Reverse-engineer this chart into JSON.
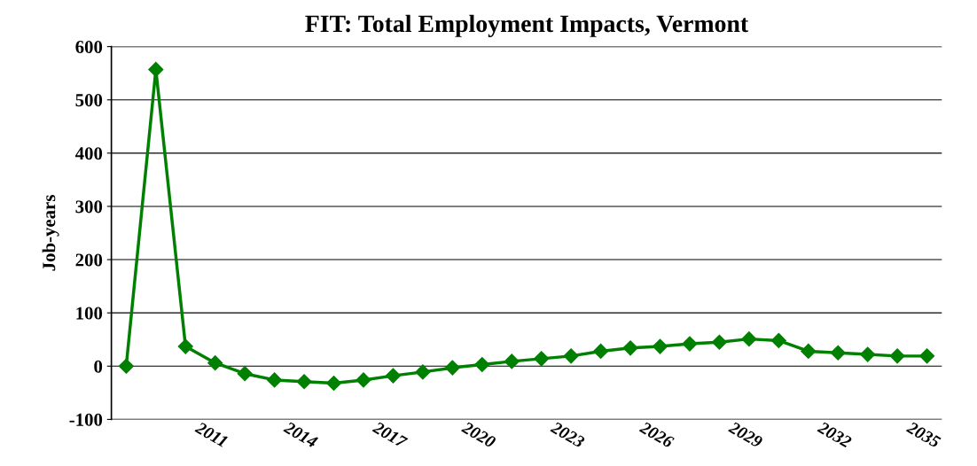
{
  "chart_data": {
    "type": "line",
    "title": "FIT: Total Employment Impacts, Vermont",
    "ylabel": "Job-years",
    "categories": [
      null,
      null,
      null,
      "2011",
      null,
      null,
      "2014",
      null,
      null,
      "2017",
      null,
      null,
      "2020",
      null,
      null,
      "2023",
      null,
      null,
      "2026",
      null,
      null,
      "2029",
      null,
      null,
      "2032",
      null,
      null,
      "2035"
    ],
    "series": [
      {
        "color": "#008000",
        "values": [
          0,
          557,
          37,
          6,
          -14,
          -26,
          -29,
          -32,
          -26,
          -18,
          -11,
          -3,
          3,
          9,
          14,
          19,
          28,
          34,
          37,
          42,
          45,
          51,
          48,
          28,
          25,
          22,
          19,
          19
        ]
      }
    ],
    "ylim": [
      -100,
      600
    ],
    "yticks": [
      -100,
      0,
      100,
      200,
      300,
      400,
      500,
      600
    ],
    "grid": "y",
    "legend": false,
    "marker": "diamond",
    "line_style": "solid"
  }
}
